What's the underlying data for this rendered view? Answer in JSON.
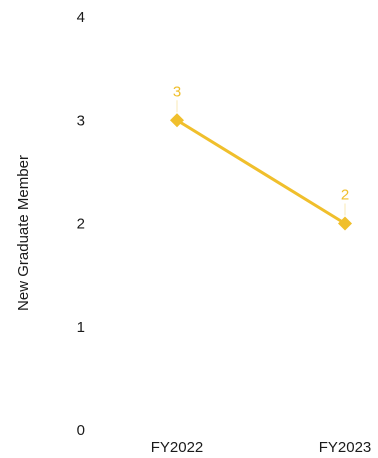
{
  "chart_data": {
    "type": "line",
    "categories": [
      "FY2022",
      "FY2023"
    ],
    "series": [
      {
        "values": [
          3,
          2
        ],
        "color": "#f0bf2c",
        "marker": "diamond"
      }
    ],
    "xlabel": "",
    "ylabel": "New Graduate Member",
    "ylim": [
      0,
      4
    ],
    "yticks": [
      0,
      1,
      2,
      3,
      4
    ],
    "grid": false,
    "data_labels": [
      "3",
      "2"
    ]
  }
}
